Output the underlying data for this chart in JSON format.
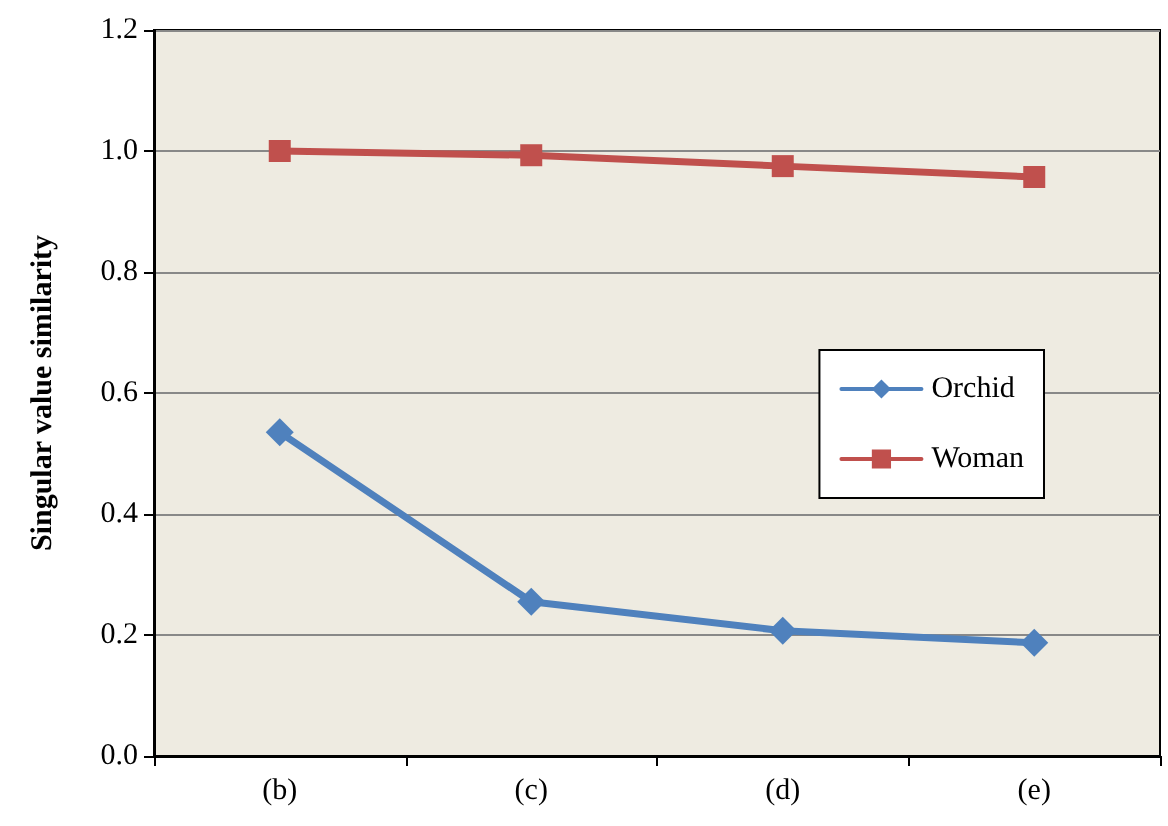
{
  "chart_data": {
    "type": "line",
    "ylabel": "Singular value similarity",
    "categories": [
      "(b)",
      "(c)",
      "(d)",
      "(e)"
    ],
    "series": [
      {
        "name": "Orchid",
        "color": "#4f81bd",
        "marker": "diamond",
        "values": [
          0.535,
          0.255,
          0.207,
          0.187
        ]
      },
      {
        "name": "Woman",
        "color": "#c0504d",
        "marker": "square",
        "values": [
          1.0,
          0.993,
          0.975,
          0.957
        ]
      }
    ],
    "ylim": [
      0,
      1.2
    ],
    "yticks": [
      {
        "value": 0,
        "label": "0.0"
      },
      {
        "value": 0.2,
        "label": "0.2"
      },
      {
        "value": 0.4,
        "label": "0.4"
      },
      {
        "value": 0.6,
        "label": "0.6"
      },
      {
        "value": 0.8,
        "label": "0.8"
      },
      {
        "value": 1.0,
        "label": "1.0"
      },
      {
        "value": 1.2,
        "label": "1.2"
      }
    ],
    "grid": "y",
    "legend": "right",
    "line_style": "solid"
  }
}
